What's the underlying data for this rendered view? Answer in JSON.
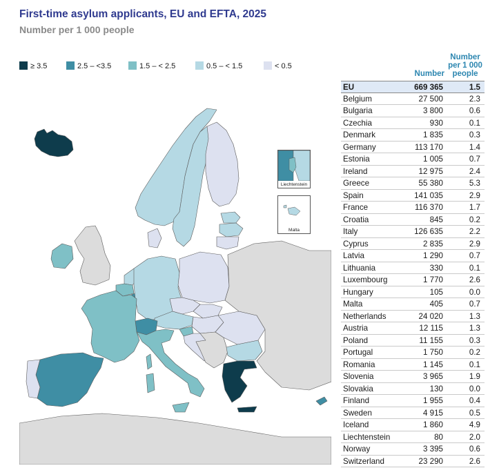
{
  "header": {
    "title": "First-time asylum applicants, EU and EFTA, 2025",
    "subtitle": "Number per 1 000 people"
  },
  "legend": [
    {
      "label": "≥ 3.5",
      "color": "#0e3c4c"
    },
    {
      "label": "2.5 – <3.5",
      "color": "#3f8ea4"
    },
    {
      "label": "1.5 – < 2.5",
      "color": "#7fc0c6"
    },
    {
      "label": "0.5 – < 1.5",
      "color": "#b5d9e4"
    },
    {
      "label": "< 0.5",
      "color": "#dde1f0"
    }
  ],
  "colors": {
    "no_data": "#dcdcdc",
    "sea": "#ffffff",
    "border": "#5a5a5a",
    "title": "#2f3a8f",
    "header_blue": "#2c86b0",
    "eu_row": "#dfe9f6"
  },
  "insets": {
    "liechtenstein": "Liechtenstein",
    "malta": "Malta"
  },
  "table": {
    "header_number": "Number",
    "header_per": "Number per 1 000 people",
    "eu": {
      "name": "EU",
      "number": "669 365",
      "per": "1.5"
    },
    "rows": [
      {
        "name": "Belgium",
        "number": "27 500",
        "per": "2.3"
      },
      {
        "name": "Bulgaria",
        "number": "3 800",
        "per": "0.6"
      },
      {
        "name": "Czechia",
        "number": "930",
        "per": "0.1"
      },
      {
        "name": "Denmark",
        "number": "1 835",
        "per": "0.3"
      },
      {
        "name": "Germany",
        "number": "113 170",
        "per": "1.4"
      },
      {
        "name": "Estonia",
        "number": "1 005",
        "per": "0.7"
      },
      {
        "name": "Ireland",
        "number": "12 975",
        "per": "2.4"
      },
      {
        "name": "Greece",
        "number": "55 380",
        "per": "5.3"
      },
      {
        "name": "Spain",
        "number": "141 035",
        "per": "2.9"
      },
      {
        "name": "France",
        "number": "116 370",
        "per": "1.7"
      },
      {
        "name": "Croatia",
        "number": "845",
        "per": "0.2"
      },
      {
        "name": "Italy",
        "number": "126 635",
        "per": "2.2"
      },
      {
        "name": "Cyprus",
        "number": "2 835",
        "per": "2.9"
      },
      {
        "name": "Latvia",
        "number": "1 290",
        "per": "0.7"
      },
      {
        "name": "Lithuania",
        "number": "330",
        "per": "0.1"
      },
      {
        "name": "Luxembourg",
        "number": "1 770",
        "per": "2.6"
      },
      {
        "name": "Hungary",
        "number": "105",
        "per": "0.0"
      },
      {
        "name": "Malta",
        "number": "405",
        "per": "0.7"
      },
      {
        "name": "Netherlands",
        "number": "24 020",
        "per": "1.3"
      },
      {
        "name": "Austria",
        "number": "12 115",
        "per": "1.3"
      },
      {
        "name": "Poland",
        "number": "11 155",
        "per": "0.3"
      },
      {
        "name": "Portugal",
        "number": "1 750",
        "per": "0.2"
      },
      {
        "name": "Romania",
        "number": "1 145",
        "per": "0.1"
      },
      {
        "name": "Slovenia",
        "number": "3 965",
        "per": "1.9"
      },
      {
        "name": "Slovakia",
        "number": "130",
        "per": "0.0"
      },
      {
        "name": "Finland",
        "number": "1 955",
        "per": "0.4"
      },
      {
        "name": "Sweden",
        "number": "4 915",
        "per": "0.5"
      },
      {
        "name": "Iceland",
        "number": "1 860",
        "per": "4.9"
      },
      {
        "name": "Liechtenstein",
        "number": "80",
        "per": "2.0"
      },
      {
        "name": "Norway",
        "number": "3 395",
        "per": "0.6"
      },
      {
        "name": "Switzerland",
        "number": "23 290",
        "per": "2.6"
      }
    ]
  }
}
